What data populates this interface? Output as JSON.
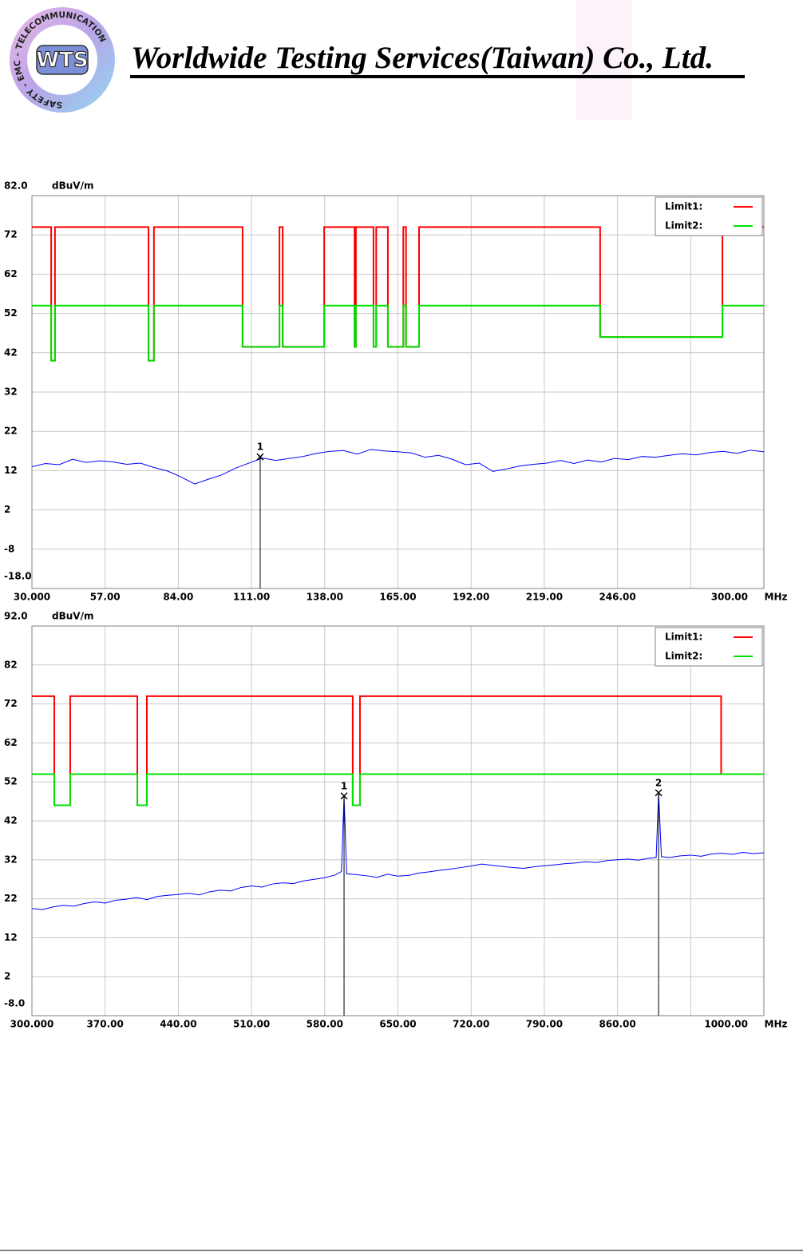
{
  "header": {
    "logo_ring": "SAFETY - EMC - TELECOMMUNICATION",
    "logo_mark": "WTS",
    "company": "Worldwide Testing Services(Taiwan) Co., Ltd."
  },
  "chart_data": [
    {
      "type": "line",
      "y_unit": "dBuV/m",
      "x_unit": "MHz",
      "xlim": [
        30,
        300
      ],
      "ylim": [
        -18,
        82
      ],
      "xticks": [
        {
          "value": 30,
          "label": "30.000"
        },
        {
          "value": 57,
          "label": "57.00"
        },
        {
          "value": 84,
          "label": "84.00"
        },
        {
          "value": 111,
          "label": "111.00"
        },
        {
          "value": 138,
          "label": "138.00"
        },
        {
          "value": 165,
          "label": "165.00"
        },
        {
          "value": 192,
          "label": "192.00"
        },
        {
          "value": 219,
          "label": "219.00"
        },
        {
          "value": 246,
          "label": "246.00"
        },
        {
          "value": 273,
          "label": null
        },
        {
          "value": 300,
          "label": "300.00"
        }
      ],
      "yticks": [
        {
          "value": -18,
          "label": "-18.0"
        },
        -8,
        2,
        12,
        22,
        32,
        42,
        52,
        62,
        72,
        {
          "value": 82,
          "label": "82.0"
        }
      ],
      "grid": true,
      "legend": "top-right",
      "series": [
        {
          "name": "Limit1:",
          "color": "#ff0000",
          "x": [
            30,
            37.1,
            37.1,
            38.5,
            38.5,
            73,
            73,
            75,
            75,
            107.7,
            107.7,
            121.3,
            121.3,
            122.5,
            122.5,
            137.8,
            137.8,
            149,
            149,
            149.5,
            149.5,
            156,
            156,
            157,
            157,
            161.3,
            161.3,
            167,
            167,
            168,
            168,
            172.8,
            172.8,
            239.6,
            239.6,
            284.7,
            284.7,
            300
          ],
          "values": [
            74,
            74,
            40,
            40,
            74,
            74,
            40,
            40,
            74,
            74,
            43.5,
            43.5,
            74,
            74,
            43.5,
            43.5,
            74,
            74,
            43.5,
            43.5,
            74,
            74,
            43.5,
            43.5,
            74,
            74,
            43.5,
            43.5,
            74,
            74,
            43.5,
            43.5,
            74,
            74,
            46,
            46,
            74,
            74
          ]
        },
        {
          "name": "Limit2:",
          "color": "#00e000",
          "x": [
            30,
            37.1,
            37.1,
            38.5,
            38.5,
            73,
            73,
            75,
            75,
            107.7,
            107.7,
            121.3,
            121.3,
            122.5,
            122.5,
            137.8,
            137.8,
            149,
            149,
            149.5,
            149.5,
            156,
            156,
            157,
            157,
            161.3,
            161.3,
            167,
            167,
            168,
            168,
            172.8,
            172.8,
            239.6,
            239.6,
            284.7,
            284.7,
            300
          ],
          "values": [
            54,
            54,
            40,
            40,
            54,
            54,
            40,
            40,
            54,
            54,
            43.5,
            43.5,
            54,
            54,
            43.5,
            43.5,
            54,
            54,
            43.5,
            43.5,
            54,
            54,
            43.5,
            43.5,
            54,
            54,
            43.5,
            43.5,
            54,
            54,
            43.5,
            43.5,
            54,
            54,
            46,
            46,
            54,
            54
          ]
        }
      ],
      "trace": {
        "color": "#0000ff",
        "x": [
          30,
          35,
          40,
          45,
          50,
          55,
          60,
          65,
          70,
          75,
          80,
          85,
          90,
          95,
          100,
          105,
          110,
          115,
          120,
          125,
          130,
          135,
          140,
          145,
          150,
          155,
          160,
          165,
          170,
          175,
          180,
          185,
          190,
          195,
          200,
          205,
          210,
          215,
          220,
          225,
          230,
          235,
          240,
          245,
          250,
          255,
          260,
          265,
          270,
          275,
          280,
          285,
          290,
          295,
          300
        ],
        "values": [
          13.0,
          13.8,
          13.5,
          14.9,
          14.1,
          14.5,
          14.2,
          13.6,
          13.9,
          12.8,
          11.9,
          10.4,
          8.6,
          9.8,
          10.9,
          12.6,
          13.9,
          15.2,
          14.6,
          15.1,
          15.6,
          16.4,
          16.9,
          17.1,
          16.2,
          17.4,
          17.0,
          16.8,
          16.5,
          15.4,
          15.9,
          14.9,
          13.5,
          13.9,
          11.8,
          12.4,
          13.2,
          13.6,
          13.9,
          14.6,
          13.8,
          14.7,
          14.2,
          15.1,
          14.8,
          15.6,
          15.4,
          15.9,
          16.3,
          16.0,
          16.6,
          16.9,
          16.4,
          17.2,
          16.8
        ]
      },
      "markers": [
        {
          "label": "1",
          "x": 114.2,
          "y": 15.5
        }
      ]
    },
    {
      "type": "line",
      "y_unit": "dBuV/m",
      "x_unit": "MHz",
      "xlim": [
        300,
        1000
      ],
      "ylim": [
        -8,
        92
      ],
      "xticks": [
        {
          "value": 300,
          "label": "300.000"
        },
        {
          "value": 370,
          "label": "370.00"
        },
        {
          "value": 440,
          "label": "440.00"
        },
        {
          "value": 510,
          "label": "510.00"
        },
        {
          "value": 580,
          "label": "580.00"
        },
        {
          "value": 650,
          "label": "650.00"
        },
        {
          "value": 720,
          "label": "720.00"
        },
        {
          "value": 790,
          "label": "790.00"
        },
        {
          "value": 860,
          "label": "860.00"
        },
        {
          "value": 930,
          "label": null
        },
        {
          "value": 1000,
          "label": "1000.00"
        }
      ],
      "yticks": [
        {
          "value": -8,
          "label": "-8.0"
        },
        2,
        12,
        22,
        32,
        42,
        52,
        62,
        72,
        82,
        {
          "value": 92,
          "label": "92.0"
        }
      ],
      "grid": true,
      "legend": "top-right",
      "series": [
        {
          "name": "Limit1:",
          "color": "#ff0000",
          "x": [
            300,
            321.4,
            321.4,
            336.6,
            336.6,
            400.8,
            400.8,
            409.9,
            409.9,
            606.8,
            606.8,
            613.7,
            613.7,
            959.1,
            959.1,
            1000
          ],
          "values": [
            74,
            74,
            46,
            46,
            74,
            74,
            46,
            46,
            74,
            74,
            46,
            46,
            74,
            74,
            54,
            54
          ]
        },
        {
          "name": "Limit2:",
          "color": "#00e000",
          "x": [
            300,
            321.4,
            321.4,
            336.6,
            336.6,
            400.8,
            400.8,
            409.9,
            409.9,
            606.8,
            606.8,
            613.7,
            613.7,
            959.1,
            959.1,
            1000
          ],
          "values": [
            54,
            54,
            46,
            46,
            54,
            54,
            46,
            46,
            54,
            54,
            46,
            46,
            54,
            54,
            54,
            54
          ]
        }
      ],
      "trace": {
        "color": "#0000ff",
        "x": [
          300,
          310,
          320,
          330,
          340,
          350,
          360,
          370,
          380,
          390,
          400,
          410,
          420,
          430,
          440,
          450,
          460,
          470,
          480,
          490,
          500,
          510,
          520,
          530,
          540,
          550,
          560,
          570,
          580,
          590,
          596,
          598.5,
          601,
          610,
          620,
          630,
          640,
          650,
          660,
          670,
          680,
          690,
          700,
          710,
          720,
          730,
          740,
          750,
          760,
          770,
          780,
          790,
          800,
          810,
          820,
          830,
          840,
          850,
          860,
          870,
          880,
          890,
          897,
          899.3,
          902,
          910,
          920,
          930,
          940,
          950,
          960,
          970,
          980,
          990,
          1000
        ],
        "values": [
          19.5,
          19.2,
          19.9,
          20.3,
          20.1,
          20.8,
          21.2,
          20.9,
          21.6,
          21.9,
          22.3,
          21.8,
          22.6,
          22.9,
          23.1,
          23.4,
          23.0,
          23.8,
          24.2,
          24.0,
          24.9,
          25.3,
          25.0,
          25.8,
          26.1,
          25.9,
          26.6,
          27.0,
          27.4,
          28.1,
          29.0,
          48.4,
          28.4,
          28.2,
          27.9,
          27.5,
          28.3,
          27.8,
          28.0,
          28.6,
          28.9,
          29.3,
          29.6,
          30.0,
          30.4,
          30.9,
          30.6,
          30.3,
          30.0,
          29.8,
          30.2,
          30.5,
          30.7,
          31.0,
          31.2,
          31.5,
          31.3,
          31.8,
          32.0,
          32.2,
          31.9,
          32.4,
          32.6,
          49.2,
          32.8,
          32.6,
          33.0,
          33.2,
          32.9,
          33.5,
          33.7,
          33.4,
          33.9,
          33.6,
          33.8
        ]
      },
      "markers": [
        {
          "label": "1",
          "x": 598.5,
          "y": 48.4
        },
        {
          "label": "2",
          "x": 899.3,
          "y": 49.2
        }
      ]
    }
  ]
}
